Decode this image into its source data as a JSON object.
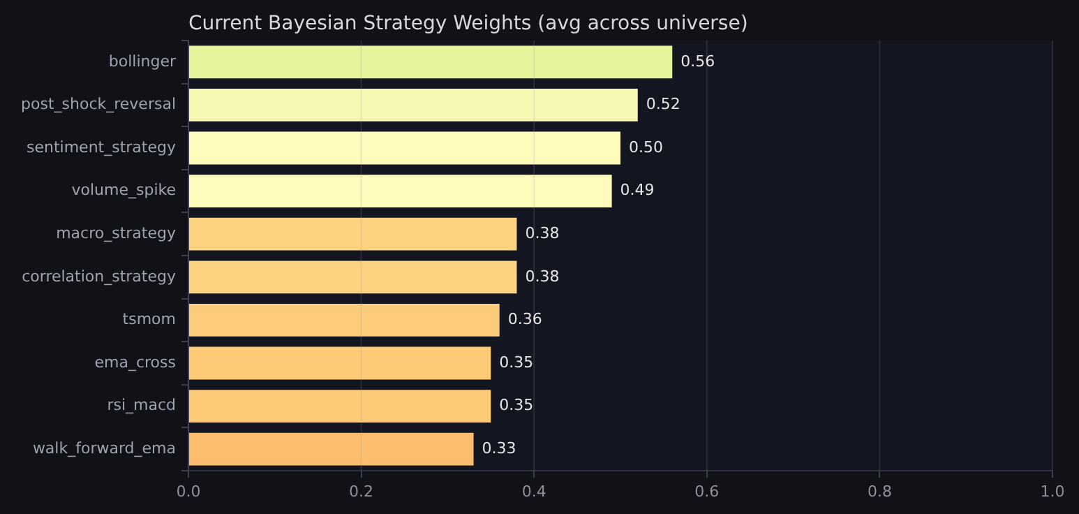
{
  "chart_data": {
    "type": "bar",
    "orientation": "horizontal",
    "title": "Current Bayesian Strategy Weights (avg across universe)",
    "categories": [
      "bollinger",
      "post_shock_reversal",
      "sentiment_strategy",
      "volume_spike",
      "macro_strategy",
      "correlation_strategy",
      "tsmom",
      "ema_cross",
      "rsi_macd",
      "walk_forward_ema"
    ],
    "values": [
      0.56,
      0.52,
      0.5,
      0.49,
      0.38,
      0.38,
      0.36,
      0.35,
      0.35,
      0.33
    ],
    "colors": [
      "#e4f59b",
      "#f7f8b2",
      "#fefbbd",
      "#fefbbd",
      "#fdd381",
      "#fdd381",
      "#fdcc7a",
      "#fdca78",
      "#fdca78",
      "#fdbd6e"
    ],
    "xlim": [
      0,
      1
    ],
    "xticks": [
      {
        "value": 0,
        "label": "0.0"
      },
      {
        "value": 0.2,
        "label": "0.2"
      },
      {
        "value": 0.4,
        "label": "0.4"
      },
      {
        "value": 0.6,
        "label": "0.6"
      },
      {
        "value": 0.8,
        "label": "0.8"
      },
      {
        "value": 1,
        "label": "1.0"
      }
    ],
    "value_labels": [
      "0.56",
      "0.52",
      "0.50",
      "0.49",
      "0.38",
      "0.38",
      "0.36",
      "0.35",
      "0.35",
      "0.33"
    ],
    "grid": "x"
  }
}
